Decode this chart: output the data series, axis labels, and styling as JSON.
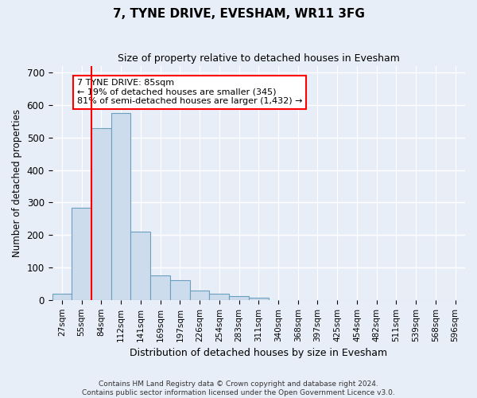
{
  "title": "7, TYNE DRIVE, EVESHAM, WR11 3FG",
  "subtitle": "Size of property relative to detached houses in Evesham",
  "xlabel": "Distribution of detached houses by size in Evesham",
  "ylabel": "Number of detached properties",
  "bar_color": "#ccdcec",
  "bar_edge_color": "#6a9fc0",
  "background_color": "#e8eef8",
  "grid_color": "#ffffff",
  "categories": [
    "27sqm",
    "55sqm",
    "84sqm",
    "112sqm",
    "141sqm",
    "169sqm",
    "197sqm",
    "226sqm",
    "254sqm",
    "283sqm",
    "311sqm",
    "340sqm",
    "368sqm",
    "397sqm",
    "425sqm",
    "454sqm",
    "482sqm",
    "511sqm",
    "539sqm",
    "568sqm",
    "596sqm"
  ],
  "values": [
    18,
    285,
    530,
    575,
    210,
    75,
    60,
    28,
    18,
    12,
    8,
    0,
    0,
    0,
    0,
    0,
    0,
    0,
    0,
    0,
    0
  ],
  "vline_index": 2,
  "annotation_text": "7 TYNE DRIVE: 85sqm\n← 19% of detached houses are smaller (345)\n81% of semi-detached houses are larger (1,432) →",
  "ylim": [
    0,
    720
  ],
  "yticks": [
    0,
    100,
    200,
    300,
    400,
    500,
    600,
    700
  ],
  "footer_line1": "Contains HM Land Registry data © Crown copyright and database right 2024.",
  "footer_line2": "Contains public sector information licensed under the Open Government Licence v3.0."
}
